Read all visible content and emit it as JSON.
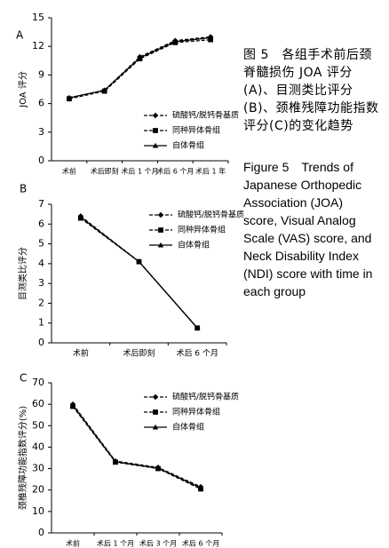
{
  "chart_data": [
    {
      "type": "line",
      "panel_label": "A",
      "y_label": "JOA 评分",
      "categories": [
        "术前",
        "术后即刻",
        "术后 1 个月",
        "术后 6 个月",
        "术后 1 年"
      ],
      "ylim": [
        0,
        15
      ],
      "yticks": [
        0,
        3,
        6,
        9,
        12,
        15
      ],
      "series": [
        {
          "name": "硫酸钙/脱钙骨基质",
          "color": "#000000",
          "line_style": "dashed",
          "marker": "diamond",
          "values": [
            6.6,
            7.4,
            10.9,
            12.6,
            13.0
          ]
        },
        {
          "name": "同种异体骨组",
          "color": "#000000",
          "line_style": "dashed",
          "marker": "square",
          "values": [
            6.5,
            7.3,
            10.7,
            12.4,
            12.7
          ]
        },
        {
          "name": "自体骨组",
          "color": "#000000",
          "line_style": "solid",
          "marker": "triangle",
          "values": [
            6.6,
            7.4,
            10.8,
            12.5,
            12.9
          ]
        }
      ]
    },
    {
      "type": "line",
      "panel_label": "B",
      "y_label": "目测类比评分",
      "categories": [
        "术前",
        "术后即刻",
        "术后 6 个月"
      ],
      "ylim": [
        0,
        7
      ],
      "yticks": [
        0,
        1,
        2,
        3,
        4,
        5,
        6,
        7
      ],
      "series": [
        {
          "name": "硫酸钙/脱钙骨基质",
          "color": "#000000",
          "line_style": "dashed",
          "marker": "diamond",
          "values": [
            6.4,
            4.1,
            0.75
          ]
        },
        {
          "name": "同种异体骨组",
          "color": "#000000",
          "line_style": "dashed",
          "marker": "square",
          "values": [
            6.3,
            4.1,
            0.75
          ]
        },
        {
          "name": "自体骨组",
          "color": "#000000",
          "line_style": "solid",
          "marker": "triangle",
          "values": [
            6.35,
            4.1,
            0.75
          ]
        }
      ]
    },
    {
      "type": "line",
      "panel_label": "C",
      "y_label": "颈椎残障功能指数评分(%)",
      "categories": [
        "术前",
        "术后 1 个月",
        "术后 3 个月",
        "术后 6 个月"
      ],
      "ylim": [
        0,
        70
      ],
      "yticks": [
        0,
        10,
        20,
        30,
        40,
        50,
        60,
        70
      ],
      "series": [
        {
          "name": "硫酸钙/脱钙骨基质",
          "color": "#000000",
          "line_style": "dashed",
          "marker": "diamond",
          "values": [
            60,
            33.5,
            30.5,
            21.5
          ]
        },
        {
          "name": "同种异体骨组",
          "color": "#000000",
          "line_style": "dashed",
          "marker": "square",
          "values": [
            59,
            33,
            30,
            20.5
          ]
        },
        {
          "name": "自体骨组",
          "color": "#000000",
          "line_style": "solid",
          "marker": "triangle",
          "values": [
            59.5,
            33.2,
            30.2,
            21
          ]
        }
      ]
    }
  ],
  "caption": {
    "zh": "图 5　各组手术前后颈脊髓损伤 JOA 评分(A)、目测类比评分(B)、颈椎残障功能指数评分(C)的变化趋势",
    "en": "Figure 5　Trends of Japanese Orthopedic Association (JOA) score, Visual Analog Scale (VAS) score, and Neck Disability Index (NDI) score with time in each group"
  }
}
